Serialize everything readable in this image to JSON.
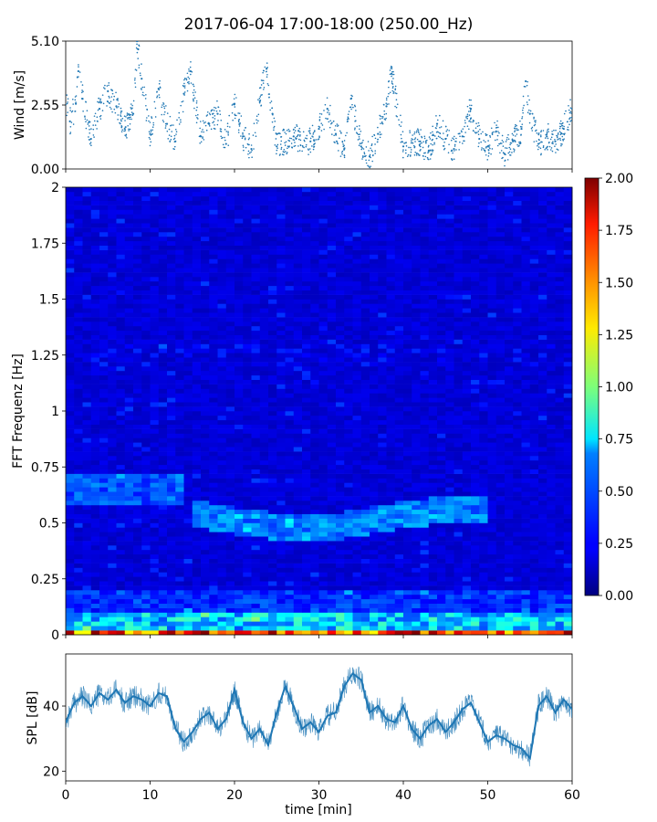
{
  "chart_data": {
    "title": "2017-06-04 17:00-18:00 (250.00_Hz)",
    "xlabel": "time [min]",
    "xlim": [
      0,
      60
    ],
    "xticks": [
      0,
      10,
      20,
      30,
      40,
      50,
      60
    ],
    "panels": [
      {
        "id": "wind",
        "type": "scatter",
        "ylabel": "Wind [m/s]",
        "ylim": [
          0,
          5.1
        ],
        "yticks": [
          "0.00",
          "2.55",
          "5.10"
        ],
        "color": "#1f77b4",
        "points": [
          [
            0.5,
            1.9
          ],
          [
            1.2,
            2.6
          ],
          [
            1.5,
            3.9
          ],
          [
            2,
            2.8
          ],
          [
            3,
            1.2
          ],
          [
            4,
            2.4
          ],
          [
            5,
            3.1
          ],
          [
            6,
            2.5
          ],
          [
            7,
            1.6
          ],
          [
            8,
            2.2
          ],
          [
            8.5,
            5.1
          ],
          [
            9,
            3.6
          ],
          [
            10,
            1.4
          ],
          [
            11,
            3.2
          ],
          [
            12,
            1.8
          ],
          [
            13,
            1.1
          ],
          [
            14,
            3.0
          ],
          [
            14.8,
            3.9
          ],
          [
            16,
            1.3
          ],
          [
            17,
            1.8
          ],
          [
            18,
            2.2
          ],
          [
            19,
            1.0
          ],
          [
            20,
            2.6
          ],
          [
            21,
            1.3
          ],
          [
            22,
            0.8
          ],
          [
            23,
            2.7
          ],
          [
            23.8,
            4.0
          ],
          [
            24.5,
            2.2
          ],
          [
            25,
            0.9
          ],
          [
            27,
            1.3
          ],
          [
            29,
            1.1
          ],
          [
            30,
            1.6
          ],
          [
            31,
            2.4
          ],
          [
            32,
            1.4
          ],
          [
            33,
            0.8
          ],
          [
            33.8,
            2.8
          ],
          [
            35,
            0.9
          ],
          [
            36,
            0.5
          ],
          [
            37,
            1.4
          ],
          [
            38,
            2.5
          ],
          [
            38.6,
            3.8
          ],
          [
            40,
            0.9
          ],
          [
            42,
            1.1
          ],
          [
            43,
            0.7
          ],
          [
            44,
            1.8
          ],
          [
            45,
            1.2
          ],
          [
            46,
            0.8
          ],
          [
            47,
            1.3
          ],
          [
            48,
            2.4
          ],
          [
            49,
            1.2
          ],
          [
            50,
            0.9
          ],
          [
            51,
            1.5
          ],
          [
            52,
            0.6
          ],
          [
            53,
            1.1
          ],
          [
            54,
            1.6
          ],
          [
            54.5,
            3.5
          ],
          [
            55,
            2.2
          ],
          [
            56,
            1.0
          ],
          [
            57,
            1.3
          ],
          [
            58,
            1.1
          ],
          [
            59,
            1.6
          ],
          [
            60,
            2.4
          ]
        ]
      },
      {
        "id": "spectrogram",
        "type": "heatmap",
        "ylabel": "FFT Frequenz [Hz]",
        "ylim": [
          0,
          2
        ],
        "yticks": [
          "0",
          "0.25",
          "0.5",
          "0.75",
          "1",
          "1.25",
          "1.5",
          "1.75",
          "2"
        ],
        "colorbar": {
          "vmin": 0,
          "vmax": 2,
          "ticks": [
            "0.00",
            "0.25",
            "0.50",
            "0.75",
            "1.00",
            "1.25",
            "1.50",
            "1.75",
            "2.00"
          ],
          "colormap": "jet"
        }
      },
      {
        "id": "spl",
        "type": "line",
        "ylabel": "SPL [dB]",
        "ylim": [
          17,
          56
        ],
        "yticks": [
          "20",
          "40"
        ],
        "color": "#1f77b4",
        "x": [
          0,
          1,
          2,
          3,
          4,
          5,
          6,
          7,
          8,
          9,
          10,
          11,
          12,
          13,
          14,
          15,
          16,
          17,
          18,
          19,
          20,
          21,
          22,
          23,
          24,
          25,
          26,
          27,
          28,
          29,
          30,
          31,
          32,
          33,
          34,
          35,
          36,
          37,
          38,
          39,
          40,
          41,
          42,
          43,
          44,
          45,
          46,
          47,
          48,
          49,
          50,
          51,
          52,
          53,
          54,
          55,
          56,
          57,
          58,
          59,
          60
        ],
        "values": [
          35,
          41,
          43,
          40,
          44,
          42,
          45,
          41,
          43,
          42,
          40,
          44,
          43,
          33,
          29,
          32,
          36,
          38,
          33,
          36,
          45,
          35,
          30,
          33,
          28,
          38,
          46,
          40,
          33,
          35,
          32,
          37,
          38,
          46,
          50,
          48,
          38,
          40,
          36,
          35,
          40,
          33,
          30,
          34,
          36,
          32,
          35,
          39,
          41,
          35,
          29,
          31,
          30,
          28,
          27,
          24,
          40,
          43,
          38,
          42,
          39
        ]
      }
    ]
  }
}
